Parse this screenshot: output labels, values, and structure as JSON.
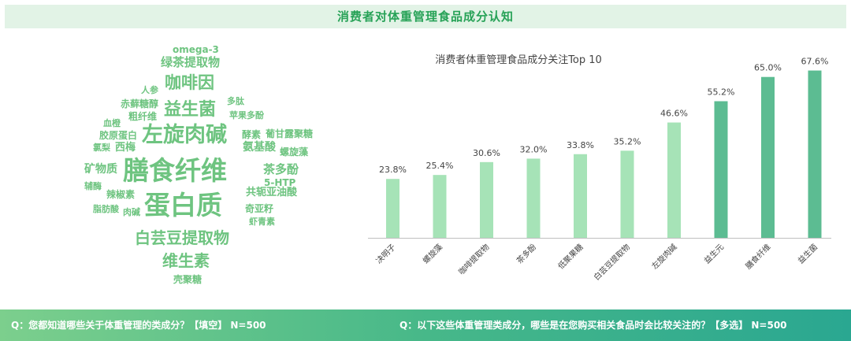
{
  "header": {
    "title": "消费者对体重管理食品成分认知"
  },
  "word_cloud": {
    "words": [
      {
        "text": "omega-3",
        "size": 12
      },
      {
        "text": "绿茶提取物",
        "size": 15
      },
      {
        "text": "人参",
        "size": 11
      },
      {
        "text": "咖啡因",
        "size": 21
      },
      {
        "text": "赤藓糖醇",
        "size": 12
      },
      {
        "text": "多肽",
        "size": 11
      },
      {
        "text": "益生菌",
        "size": 22
      },
      {
        "text": "粗纤维",
        "size": 12
      },
      {
        "text": "苹果多酚",
        "size": 11
      },
      {
        "text": "血橙",
        "size": 11
      },
      {
        "text": "胶原蛋白",
        "size": 12
      },
      {
        "text": "左旋肉碱",
        "size": 27
      },
      {
        "text": "酵素",
        "size": 12
      },
      {
        "text": "葡甘露聚糖",
        "size": 12
      },
      {
        "text": "氨基酸",
        "size": 14
      },
      {
        "text": "氯梨",
        "size": 11
      },
      {
        "text": "西梅",
        "size": 13
      },
      {
        "text": "螺旋藻",
        "size": 12
      },
      {
        "text": "矿物质",
        "size": 14
      },
      {
        "text": "膳食纤维",
        "size": 33
      },
      {
        "text": "茶多酚",
        "size": 15
      },
      {
        "text": "5-HTP",
        "size": 12
      },
      {
        "text": "辅酶",
        "size": 11
      },
      {
        "text": "辣椒素",
        "size": 12
      },
      {
        "text": "共轭亚油酸",
        "size": 13
      },
      {
        "text": "蛋白质",
        "size": 33
      },
      {
        "text": "脂肪酸",
        "size": 11
      },
      {
        "text": "肉碱",
        "size": 11
      },
      {
        "text": "奇亚籽",
        "size": 12
      },
      {
        "text": "虾青素",
        "size": 11
      },
      {
        "text": "白芸豆提取物",
        "size": 20
      },
      {
        "text": "维生素",
        "size": 20
      },
      {
        "text": "壳聚糖",
        "size": 12
      }
    ]
  },
  "chart_data": {
    "type": "bar",
    "title": "消费者体重管理食品成分关注Top 10",
    "categories": [
      "决明子",
      "螺旋藻",
      "咖啡提取物",
      "茶多酚",
      "低聚果糖",
      "白芸豆提取物",
      "左旋肉碱",
      "益生元",
      "膳食纤维",
      "益生菌"
    ],
    "values": [
      23.8,
      25.4,
      30.6,
      32.0,
      33.8,
      35.2,
      46.6,
      55.2,
      65.0,
      67.6
    ],
    "value_labels": [
      "23.8%",
      "25.4%",
      "30.6%",
      "32.0%",
      "33.8%",
      "35.2%",
      "46.6%",
      "55.2%",
      "65.0%",
      "67.6%"
    ],
    "unit": "%",
    "ylim": [
      0,
      70
    ],
    "grid": false,
    "colors": {
      "light": "#a6e3b7",
      "dark": "#5cbc92"
    },
    "highlight_top": 3
  },
  "footer": {
    "q1": "Q：您都知道哪些关于体重管理的类成分？【填空】 N=500",
    "q2": "Q：以下这些体重管理类成分，哪些是在您购买相关食品时会比较关注的？【多选】 N=500"
  }
}
